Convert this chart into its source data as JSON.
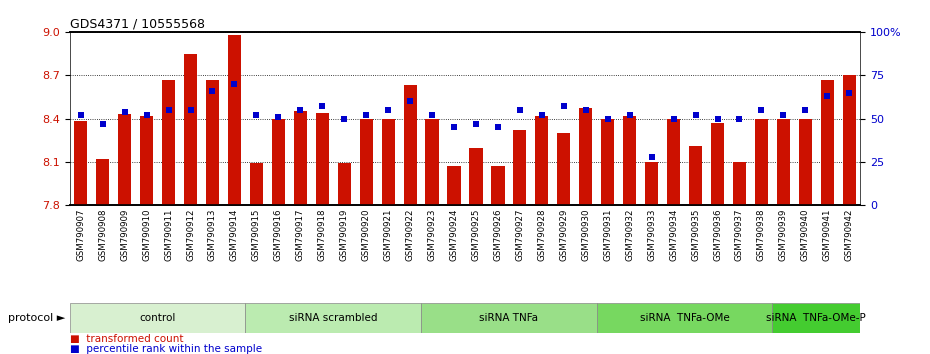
{
  "title": "GDS4371 / 10555568",
  "samples": [
    "GSM790907",
    "GSM790908",
    "GSM790909",
    "GSM790910",
    "GSM790911",
    "GSM790912",
    "GSM790913",
    "GSM790914",
    "GSM790915",
    "GSM790916",
    "GSM790917",
    "GSM790918",
    "GSM790919",
    "GSM790920",
    "GSM790921",
    "GSM790922",
    "GSM790923",
    "GSM790924",
    "GSM790925",
    "GSM790926",
    "GSM790927",
    "GSM790928",
    "GSM790929",
    "GSM790930",
    "GSM790931",
    "GSM790932",
    "GSM790933",
    "GSM790934",
    "GSM790935",
    "GSM790936",
    "GSM790937",
    "GSM790938",
    "GSM790939",
    "GSM790940",
    "GSM790941",
    "GSM790942"
  ],
  "bar_values": [
    8.38,
    8.12,
    8.43,
    8.42,
    8.67,
    8.85,
    8.67,
    8.98,
    8.09,
    8.4,
    8.45,
    8.44,
    8.09,
    8.4,
    8.4,
    8.63,
    8.4,
    8.07,
    8.2,
    8.07,
    8.32,
    8.42,
    8.3,
    8.47,
    8.4,
    8.42,
    8.1,
    8.4,
    8.21,
    8.37,
    8.1,
    8.4,
    8.4,
    8.4,
    8.67,
    8.7
  ],
  "percentile_values": [
    52,
    47,
    54,
    52,
    55,
    55,
    66,
    70,
    52,
    51,
    55,
    57,
    50,
    52,
    55,
    60,
    52,
    45,
    47,
    45,
    55,
    52,
    57,
    55,
    50,
    52,
    28,
    50,
    52,
    50,
    50,
    55,
    52,
    55,
    63,
    65
  ],
  "groups": [
    {
      "label": "control",
      "start": 0,
      "end": 8
    },
    {
      "label": "siRNA scrambled",
      "start": 8,
      "end": 16
    },
    {
      "label": "siRNA TNFa",
      "start": 16,
      "end": 24
    },
    {
      "label": "siRNA  TNFa-OMe",
      "start": 24,
      "end": 32
    },
    {
      "label": "siRNA  TNFa-OMe-P",
      "start": 32,
      "end": 36
    }
  ],
  "group_colors": [
    "#d8f0d0",
    "#bbebb0",
    "#99df88",
    "#77d860",
    "#44cc30"
  ],
  "ylim_left": [
    7.8,
    9.0
  ],
  "ylim_right": [
    0,
    100
  ],
  "yticks_left": [
    7.8,
    8.1,
    8.4,
    8.7,
    9.0
  ],
  "yticks_right": [
    0,
    25,
    50,
    75,
    100
  ],
  "bar_color": "#cc1100",
  "dot_color": "#0000cc",
  "bg_color": "#ffffff"
}
